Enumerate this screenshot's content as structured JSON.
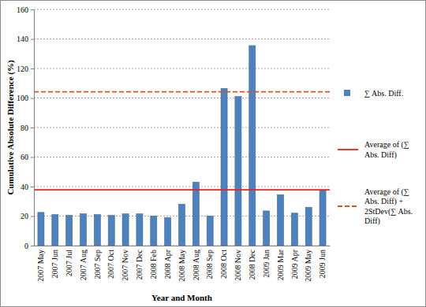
{
  "chart_data": {
    "type": "bar",
    "x_label": "Year and Month",
    "y_label": "Cumulative Absolute Difference (%)",
    "categories": [
      "2007 May",
      "2007 Jun",
      "2007 Jul",
      "2007 Aug",
      "2007 Sep",
      "2007 Oct",
      "2007 Nov",
      "2007 Dec",
      "2008 Feb",
      "2008 Apr",
      "2008 May",
      "2008 Aug",
      "2008 Sep",
      "2008 Oct",
      "2008 Nov",
      "2008 Dec",
      "2009 Jan",
      "2009 Mar",
      "2009 Apr",
      "2009 May",
      "2009 Jun"
    ],
    "series": [
      {
        "name": "∑ Abs. Diff.",
        "type": "bar",
        "color": "#4f81bd",
        "values": [
          22.5,
          21,
          20.5,
          21.5,
          21,
          20.5,
          21.5,
          21.5,
          20,
          19,
          28,
          43,
          20,
          106.5,
          101,
          135.5,
          23.5,
          34.5,
          22,
          26,
          37.5
        ]
      },
      {
        "name": "Average of (∑ Abs. Diff)",
        "type": "hline",
        "color": "#e8231f",
        "line_style": "solid",
        "value": 37.8
      },
      {
        "name": "Average of (∑ Abs. Diff) + 2StDev(∑ Abs. Diff)",
        "type": "hline",
        "color": "#d9531e",
        "line_style": "dashed",
        "value": 104.2
      }
    ],
    "ylim": [
      0,
      160
    ],
    "yticks": [
      0,
      20,
      40,
      60,
      80,
      100,
      120,
      140,
      160
    ],
    "grid": true,
    "legend": "right"
  }
}
